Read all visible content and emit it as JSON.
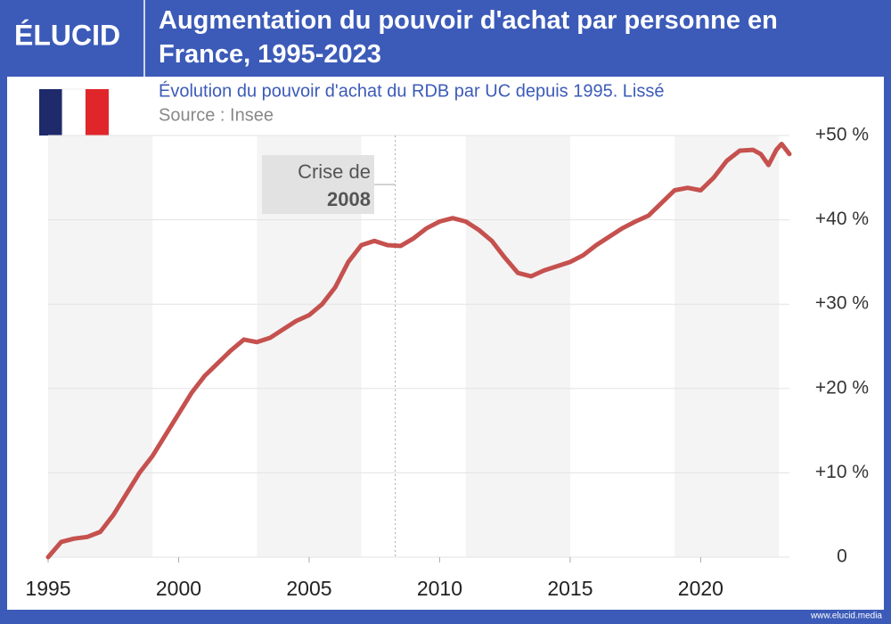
{
  "brand": "ÉLUCID",
  "footer": "www.elucid.media",
  "chart_data": {
    "type": "line",
    "title": "Augmentation du pouvoir d'achat par personne en France, 1995-2023",
    "subtitle": "Évolution du pouvoir d'achat du RDB par UC depuis 1995. Lissé",
    "source": "Source : Insee",
    "x": [
      1995,
      1995.5,
      1996,
      1996.5,
      1997,
      1997.5,
      1998,
      1998.5,
      1999,
      1999.5,
      2000,
      2000.5,
      2001,
      2001.5,
      2002,
      2002.5,
      2003,
      2003.5,
      2004,
      2004.5,
      2005,
      2005.5,
      2006,
      2006.5,
      2007,
      2007.5,
      2008,
      2008.5,
      2009,
      2009.5,
      2010,
      2010.5,
      2011,
      2011.5,
      2012,
      2012.5,
      2013,
      2013.5,
      2014,
      2014.5,
      2015,
      2015.5,
      2016,
      2016.5,
      2017,
      2017.5,
      2018,
      2018.5,
      2019,
      2019.5,
      2020,
      2020.5,
      2021,
      2021.5,
      2022,
      2022.3,
      2022.6,
      2022.9,
      2023.1,
      2023.4
    ],
    "series": [
      {
        "name": "Pouvoir d'achat du RDB par UC",
        "color": "#c5514e",
        "values": [
          0,
          1.8,
          2.2,
          2.4,
          3,
          5,
          7.5,
          10,
          12,
          14.5,
          17,
          19.5,
          21.5,
          23,
          24.5,
          25.8,
          25.5,
          26,
          27,
          28,
          28.7,
          30,
          32,
          35,
          37,
          37.5,
          37,
          36.9,
          37.8,
          39,
          39.8,
          40.2,
          39.8,
          38.8,
          37.5,
          35.5,
          33.7,
          33.3,
          34,
          34.5,
          35,
          35.8,
          37,
          38,
          39,
          39.8,
          40.5,
          42,
          43.5,
          43.8,
          43.5,
          45,
          47,
          48.2,
          48.3,
          47.8,
          46.5,
          48.3,
          49,
          47.8
        ]
      }
    ],
    "xlim": [
      1995,
      2023.4
    ],
    "xticks": [
      1995,
      2000,
      2005,
      2010,
      2015,
      2020
    ],
    "ylim": [
      0,
      50
    ],
    "yticks": [
      0,
      {
        "value": 10,
        "label": "+10 %"
      },
      {
        "value": 20,
        "label": "+20 %"
      },
      {
        "value": 30,
        "label": "+30 %"
      },
      {
        "value": 40,
        "label": "+40 %"
      },
      {
        "value": 50,
        "label": "+50 %"
      }
    ],
    "grid": true,
    "bands": [
      [
        1995,
        1999
      ],
      [
        2003,
        2007
      ],
      [
        2011,
        2015
      ],
      [
        2019,
        2023
      ]
    ],
    "annotation": {
      "x": 2008.3,
      "lines": [
        "Crise de",
        "2008"
      ]
    }
  }
}
